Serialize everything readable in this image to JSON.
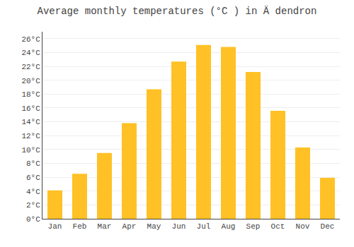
{
  "chart_data": {
    "type": "bar",
    "title": "Average monthly temperatures (°C ) in Ä dendron",
    "categories": [
      "Jan",
      "Feb",
      "Mar",
      "Apr",
      "May",
      "Jun",
      "Jul",
      "Aug",
      "Sep",
      "Oct",
      "Nov",
      "Dec"
    ],
    "values": [
      4.1,
      6.5,
      9.5,
      13.8,
      18.7,
      22.7,
      25.1,
      24.8,
      21.2,
      15.6,
      10.3,
      5.9
    ],
    "color": "#FFC125",
    "ylim": [
      0,
      27
    ],
    "yticks": [
      {
        "value": 0,
        "label": "0°C"
      },
      {
        "value": 2,
        "label": "2°C"
      },
      {
        "value": 4,
        "label": "4°C"
      },
      {
        "value": 6,
        "label": "6°C"
      },
      {
        "value": 8,
        "label": "8°C"
      },
      {
        "value": 10,
        "label": "10°C"
      },
      {
        "value": 12,
        "label": "12°C"
      },
      {
        "value": 14,
        "label": "14°C"
      },
      {
        "value": 16,
        "label": "16°C"
      },
      {
        "value": 18,
        "label": "18°C"
      },
      {
        "value": 20,
        "label": "20°C"
      },
      {
        "value": 22,
        "label": "22°C"
      },
      {
        "value": 24,
        "label": "24°C"
      },
      {
        "value": 26,
        "label": "26°C"
      }
    ],
    "grid": true
  }
}
